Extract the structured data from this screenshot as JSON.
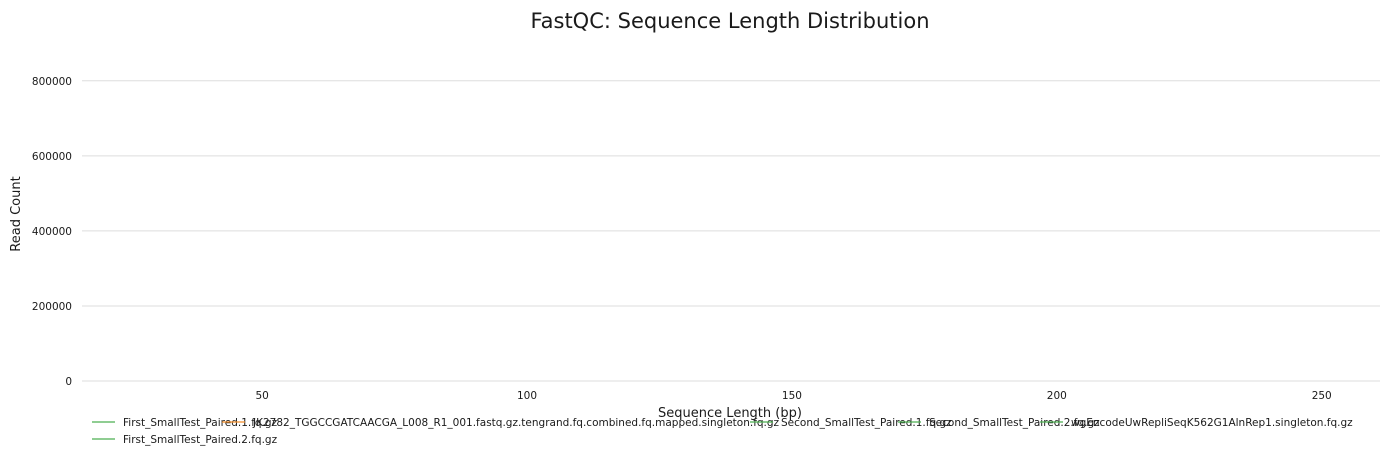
{
  "chart_data": {
    "type": "line",
    "title": "FastQC: Sequence Length Distribution",
    "xlabel": "Sequence Length (bp)",
    "ylabel": "Read Count",
    "xlim": [
      16,
      261
    ],
    "ylim": [
      0,
      850000
    ],
    "x_ticks": [
      50,
      100,
      150,
      200,
      250
    ],
    "y_ticks": [
      0,
      200000,
      400000,
      600000,
      800000
    ],
    "grid": true,
    "legend_position": "bottom",
    "series": [
      {
        "name": "First_SmallTest_Paired.1.fq.gz",
        "color": "#4caf50",
        "points": []
      },
      {
        "name": "JK2782_TGGCCGATCAACGA_L008_R1_001.fastq.gz.tengrand.fq.combined.fq.mapped.singleton.fq.gz",
        "color": "#f28e2b",
        "points": []
      },
      {
        "name": "Second_SmallTest_Paired.1.fq.gz",
        "color": "#4caf50",
        "points": []
      },
      {
        "name": "Second_SmallTest_Paired.2.fq.gz",
        "color": "#4caf50",
        "points": []
      },
      {
        "name": "wgEncodeUwRepliSeqK562G1AlnRep1.singleton.fq.gz",
        "color": "#4caf50",
        "points": []
      },
      {
        "name": "First_SmallTest_Paired.2.fq.gz",
        "color": "#4caf50",
        "points": []
      }
    ]
  }
}
